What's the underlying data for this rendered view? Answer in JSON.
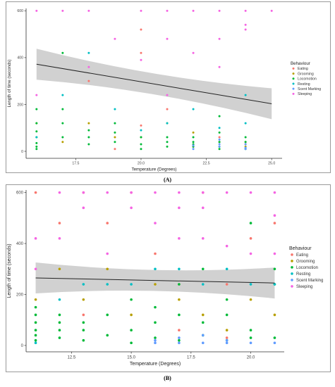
{
  "panels": [
    {
      "caption": "(A)",
      "chart_data": {
        "type": "scatter",
        "x": [
          16,
          17,
          18,
          19,
          20,
          21,
          22,
          23,
          24,
          25
        ],
        "xticks": [
          "17.5",
          "20.0",
          "22.5",
          "25.0"
        ],
        "xtick_values": [
          17.5,
          20.0,
          22.5,
          25.0
        ],
        "yticks": [
          "0",
          "200",
          "400",
          "600"
        ],
        "ytick_values": [
          0,
          200,
          400,
          600
        ],
        "xlim": [
          15.6,
          25.4
        ],
        "ylim": [
          -30,
          610
        ],
        "xlabel": "Temperature (Degrees)",
        "ylabel": "Length of time (seconds)",
        "legend_title": "Behaviour",
        "legend_position": "right",
        "grid": false,
        "categories": [
          "Eating",
          "Grooming",
          "Locomotion",
          "Resting",
          "Scent Marking",
          "Sleeping"
        ],
        "colors": [
          "#f8766d",
          "#b79f00",
          "#00ba38",
          "#00bfc4",
          "#619cff",
          "#f564e3"
        ],
        "trend": {
          "x": [
            16,
            25
          ],
          "y": [
            372,
            203
          ]
        },
        "points": {
          "Eating": [
            [
              18,
              300
            ],
            [
              19,
              10
            ],
            [
              20,
              420
            ],
            [
              20,
              520
            ],
            [
              20,
              110
            ],
            [
              21,
              180
            ],
            [
              22,
              20
            ],
            [
              23,
              60
            ],
            [
              24,
              30
            ]
          ],
          "Grooming": [
            [
              16,
              120
            ],
            [
              17,
              40
            ],
            [
              18,
              120
            ],
            [
              19,
              60
            ],
            [
              20,
              60
            ],
            [
              21,
              120
            ],
            [
              22,
              80
            ],
            [
              23,
              40
            ],
            [
              24,
              40
            ],
            [
              24,
              20
            ]
          ],
          "Locomotion": [
            [
              16,
              10
            ],
            [
              16,
              20
            ],
            [
              16,
              35
            ],
            [
              16,
              60
            ],
            [
              16,
              85
            ],
            [
              16,
              120
            ],
            [
              16,
              180
            ],
            [
              17,
              60
            ],
            [
              17,
              120
            ],
            [
              17,
              180
            ],
            [
              17,
              420
            ],
            [
              18,
              30
            ],
            [
              18,
              60
            ],
            [
              18,
              90
            ],
            [
              19,
              40
            ],
            [
              19,
              80
            ],
            [
              19,
              120
            ],
            [
              20,
              10
            ],
            [
              20,
              30
            ],
            [
              20,
              60
            ],
            [
              21,
              20
            ],
            [
              21,
              40
            ],
            [
              21,
              60
            ],
            [
              22,
              20
            ],
            [
              22,
              30
            ],
            [
              22,
              40
            ],
            [
              22,
              60
            ],
            [
              23,
              10
            ],
            [
              23,
              20
            ],
            [
              23,
              40
            ],
            [
              23,
              80
            ],
            [
              23,
              150
            ],
            [
              24,
              10
            ],
            [
              24,
              40
            ],
            [
              24,
              60
            ]
          ],
          "Resting": [
            [
              16,
              60
            ],
            [
              17,
              240
            ],
            [
              18,
              420
            ],
            [
              19,
              180
            ],
            [
              20,
              90
            ],
            [
              21,
              120
            ],
            [
              22,
              180
            ],
            [
              23,
              100
            ],
            [
              24,
              120
            ],
            [
              24,
              240
            ]
          ],
          "Scent Marking": [
            [
              22,
              10
            ],
            [
              22,
              25
            ],
            [
              23,
              20
            ],
            [
              23,
              30
            ],
            [
              23,
              50
            ],
            [
              24,
              10
            ],
            [
              24,
              15
            ],
            [
              24,
              30
            ]
          ],
          "Sleeping": [
            [
              16,
              600
            ],
            [
              16,
              240
            ],
            [
              17,
              600
            ],
            [
              18,
              600
            ],
            [
              18,
              360
            ],
            [
              19,
              480
            ],
            [
              20,
              600
            ],
            [
              20,
              390
            ],
            [
              21,
              600
            ],
            [
              21,
              480
            ],
            [
              21,
              240
            ],
            [
              22,
              600
            ],
            [
              22,
              420
            ],
            [
              23,
              600
            ],
            [
              23,
              480
            ],
            [
              23,
              360
            ],
            [
              24,
              600
            ],
            [
              24,
              540
            ],
            [
              24,
              520
            ],
            [
              25,
              600
            ]
          ]
        }
      }
    },
    {
      "caption": "(B)",
      "chart_data": {
        "type": "scatter",
        "x": [
          11,
          12,
          13,
          14,
          15,
          16,
          17,
          18,
          19,
          20,
          21
        ],
        "xticks": [
          "12.5",
          "15.0",
          "17.5",
          "20.0"
        ],
        "xtick_values": [
          12.5,
          15.0,
          17.5,
          20.0
        ],
        "yticks": [
          "0",
          "200",
          "400",
          "600"
        ],
        "ytick_values": [
          0,
          200,
          400,
          600
        ],
        "xlim": [
          10.6,
          21.4
        ],
        "ylim": [
          -25,
          610
        ],
        "xlabel": "Temperature (Degrees)",
        "ylabel": "Length of time (seconds)",
        "legend_title": "Behaviour",
        "legend_position": "right",
        "grid": false,
        "categories": [
          "Eating",
          "Grooming",
          "Locomotion",
          "Resting",
          "Scent Marking",
          "Sleeping"
        ],
        "colors": [
          "#f8766d",
          "#b79f00",
          "#00ba38",
          "#00bfc4",
          "#619cff",
          "#f564e3"
        ],
        "trend": {
          "x": [
            11,
            21
          ],
          "y": [
            265,
            245
          ]
        },
        "points": {
          "Eating": [
            [
              11,
              600
            ],
            [
              12,
              480
            ],
            [
              13,
              600
            ],
            [
              14,
              480
            ],
            [
              15,
              600
            ],
            [
              16,
              360
            ],
            [
              17,
              240
            ],
            [
              18,
              600
            ],
            [
              19,
              240
            ],
            [
              20,
              420
            ],
            [
              21,
              480
            ],
            [
              13,
              120
            ],
            [
              17,
              60
            ],
            [
              19,
              30
            ]
          ],
          "Grooming": [
            [
              11,
              180
            ],
            [
              12,
              300
            ],
            [
              13,
              180
            ],
            [
              14,
              300
            ],
            [
              15,
              120
            ],
            [
              16,
              240
            ],
            [
              17,
              180
            ],
            [
              18,
              120
            ],
            [
              19,
              60
            ],
            [
              20,
              180
            ],
            [
              21,
              120
            ]
          ],
          "Locomotion": [
            [
              11,
              20
            ],
            [
              11,
              40
            ],
            [
              11,
              60
            ],
            [
              11,
              90
            ],
            [
              11,
              120
            ],
            [
              11,
              150
            ],
            [
              12,
              30
            ],
            [
              12,
              60
            ],
            [
              12,
              90
            ],
            [
              12,
              120
            ],
            [
              13,
              20
            ],
            [
              13,
              60
            ],
            [
              13,
              90
            ],
            [
              14,
              40
            ],
            [
              14,
              120
            ],
            [
              15,
              10
            ],
            [
              15,
              60
            ],
            [
              15,
              180
            ],
            [
              16,
              30
            ],
            [
              16,
              90
            ],
            [
              16,
              150
            ],
            [
              17,
              20
            ],
            [
              17,
              120
            ],
            [
              17,
              240
            ],
            [
              18,
              40
            ],
            [
              18,
              90
            ],
            [
              18,
              300
            ],
            [
              19,
              20
            ],
            [
              19,
              120
            ],
            [
              19,
              180
            ],
            [
              20,
              30
            ],
            [
              20,
              60
            ],
            [
              20,
              480
            ],
            [
              21,
              30
            ],
            [
              21,
              240
            ],
            [
              21,
              300
            ]
          ],
          "Resting": [
            [
              11,
              10
            ],
            [
              12,
              180
            ],
            [
              13,
              240
            ],
            [
              14,
              240
            ],
            [
              15,
              240
            ],
            [
              16,
              300
            ],
            [
              17,
              300
            ],
            [
              18,
              240
            ],
            [
              19,
              300
            ],
            [
              20,
              240
            ],
            [
              21,
              240
            ]
          ],
          "Scent Marking": [
            [
              16,
              10
            ],
            [
              16,
              20
            ],
            [
              17,
              10
            ],
            [
              17,
              30
            ],
            [
              18,
              10
            ],
            [
              18,
              40
            ],
            [
              19,
              10
            ],
            [
              19,
              20
            ],
            [
              20,
              10
            ],
            [
              21,
              10
            ]
          ],
          "Sleeping": [
            [
              11,
              300
            ],
            [
              11,
              420
            ],
            [
              12,
              600
            ],
            [
              12,
              420
            ],
            [
              13,
              540
            ],
            [
              13,
              600
            ],
            [
              14,
              600
            ],
            [
              14,
              360
            ],
            [
              15,
              600
            ],
            [
              15,
              540
            ],
            [
              16,
              600
            ],
            [
              16,
              480
            ],
            [
              17,
              600
            ],
            [
              17,
              420
            ],
            [
              17,
              540
            ],
            [
              18,
              600
            ],
            [
              18,
              540
            ],
            [
              18,
              420
            ],
            [
              19,
              600
            ],
            [
              19,
              390
            ],
            [
              20,
              600
            ],
            [
              20,
              360
            ],
            [
              21,
              600
            ],
            [
              21,
              510
            ],
            [
              21,
              360
            ]
          ]
        }
      }
    }
  ]
}
